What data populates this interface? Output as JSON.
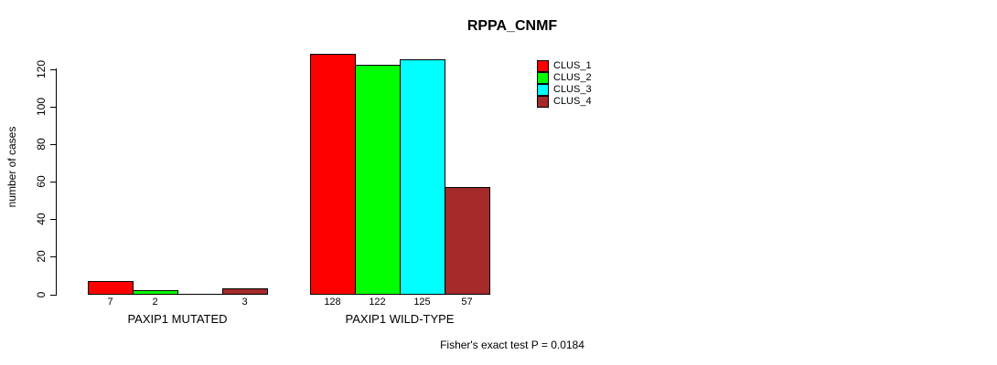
{
  "chart_data": {
    "type": "bar",
    "title": "RPPA_CNMF",
    "ylabel": "number of cases",
    "xlabel": "",
    "categories": [
      "PAXIP1 MUTATED",
      "PAXIP1 WILD-TYPE"
    ],
    "series": [
      {
        "name": "CLUS_1",
        "color": "#FF0000",
        "values": [
          7,
          128
        ]
      },
      {
        "name": "CLUS_2",
        "color": "#00FF00",
        "values": [
          2,
          122
        ]
      },
      {
        "name": "CLUS_3",
        "color": "#00FFFF",
        "values": [
          0,
          125
        ]
      },
      {
        "name": "CLUS_4",
        "color": "#A52A2A",
        "values": [
          3,
          57
        ]
      }
    ],
    "bar_value_labels": [
      [
        "7",
        "2",
        "",
        "3"
      ],
      [
        "128",
        "122",
        "125",
        "57"
      ]
    ],
    "yticks": [
      0,
      20,
      40,
      60,
      80,
      100,
      120
    ],
    "ylim": [
      0,
      130
    ],
    "grid": false,
    "legend": {
      "position": "top-right-inside",
      "entries": [
        "CLUS_1",
        "CLUS_2",
        "CLUS_3",
        "CLUS_4"
      ]
    },
    "annotation": "Fisher's exact test P = 0.0184"
  }
}
